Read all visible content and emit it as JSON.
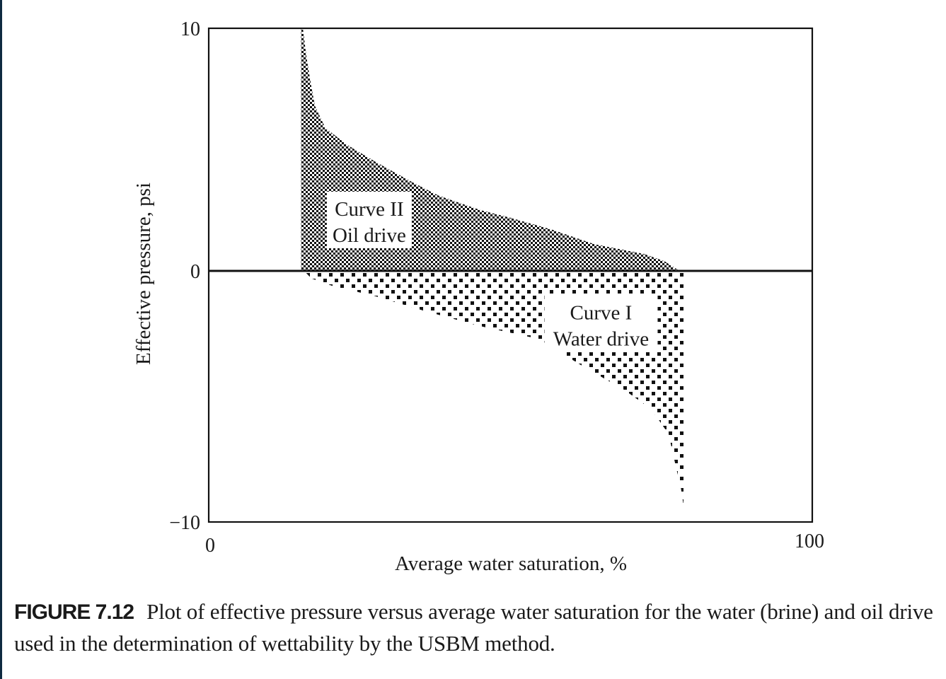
{
  "chart_data": {
    "type": "area",
    "title": "",
    "xlabel": "Average water saturation, %",
    "ylabel": "Effective pressure, psi",
    "xlim": [
      0,
      100
    ],
    "ylim": [
      -10,
      10
    ],
    "x_ticks": [
      "0",
      "100"
    ],
    "y_ticks": [
      "10",
      "0",
      "−10"
    ],
    "grid": false,
    "legend": "none",
    "series": [
      {
        "name": "Curve II Oil drive",
        "fill": "dense-checker",
        "points": [
          [
            15.6,
            10
          ],
          [
            16.2,
            8.8
          ],
          [
            17.0,
            7.6
          ],
          [
            17.6,
            6.8
          ],
          [
            19.3,
            5.9
          ],
          [
            22.9,
            5.2
          ],
          [
            27.6,
            4.5
          ],
          [
            33.4,
            3.7
          ],
          [
            38.1,
            3.1
          ],
          [
            45.1,
            2.5
          ],
          [
            49.8,
            2.2
          ],
          [
            56.9,
            1.7
          ],
          [
            63.9,
            1.1
          ],
          [
            72.1,
            0.7
          ],
          [
            75.5,
            0.4
          ],
          [
            78.0,
            0
          ]
        ]
      },
      {
        "name": "Curve I Water drive",
        "fill": "sparse-dots",
        "points": [
          [
            15.8,
            0
          ],
          [
            17.0,
            -0.3
          ],
          [
            20.5,
            -0.6
          ],
          [
            27.5,
            -1.0
          ],
          [
            35.8,
            -1.6
          ],
          [
            45.0,
            -2.2
          ],
          [
            54.5,
            -2.7
          ],
          [
            62.7,
            -3.9
          ],
          [
            68.6,
            -4.7
          ],
          [
            73.3,
            -5.5
          ],
          [
            76.2,
            -6.5
          ],
          [
            77.4,
            -7.8
          ],
          [
            78.2,
            -8.6
          ],
          [
            78.9,
            -9.7
          ]
        ]
      }
    ],
    "annotations": [
      {
        "id": "curve2",
        "lines": [
          "Curve II",
          "Oil drive"
        ],
        "x": 26.6,
        "y": 2.1
      },
      {
        "id": "curve1",
        "lines": [
          "Curve I",
          "Water drive"
        ],
        "x": 65,
        "y": -2.1
      }
    ]
  },
  "caption": {
    "label": "FIGURE 7.12",
    "text": "Plot of effective pressure versus average water saturation for the water (brine) and oil drive used in the determination of wettability by the USBM method."
  }
}
